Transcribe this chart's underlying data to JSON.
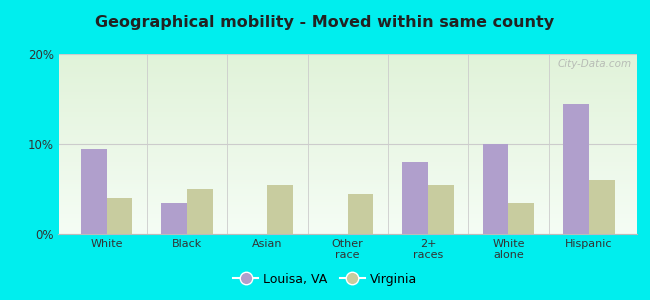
{
  "title": "Geographical mobility - Moved within same county",
  "categories": [
    "White",
    "Black",
    "Asian",
    "Other\nrace",
    "2+\nraces",
    "White\nalone",
    "Hispanic"
  ],
  "louisa_values": [
    9.5,
    3.5,
    0.0,
    0.0,
    8.0,
    10.0,
    14.5
  ],
  "virginia_values": [
    4.0,
    5.0,
    5.5,
    4.5,
    5.5,
    3.5,
    6.0
  ],
  "louisa_color": "#b09fcc",
  "virginia_color": "#c8cc9f",
  "ylim": [
    0,
    20
  ],
  "yticks": [
    0,
    10,
    20
  ],
  "ytick_labels": [
    "0%",
    "10%",
    "20%"
  ],
  "outer_background": "#00eeee",
  "legend_label1": "Louisa, VA",
  "legend_label2": "Virginia",
  "watermark": "City-Data.com",
  "bar_width": 0.32
}
